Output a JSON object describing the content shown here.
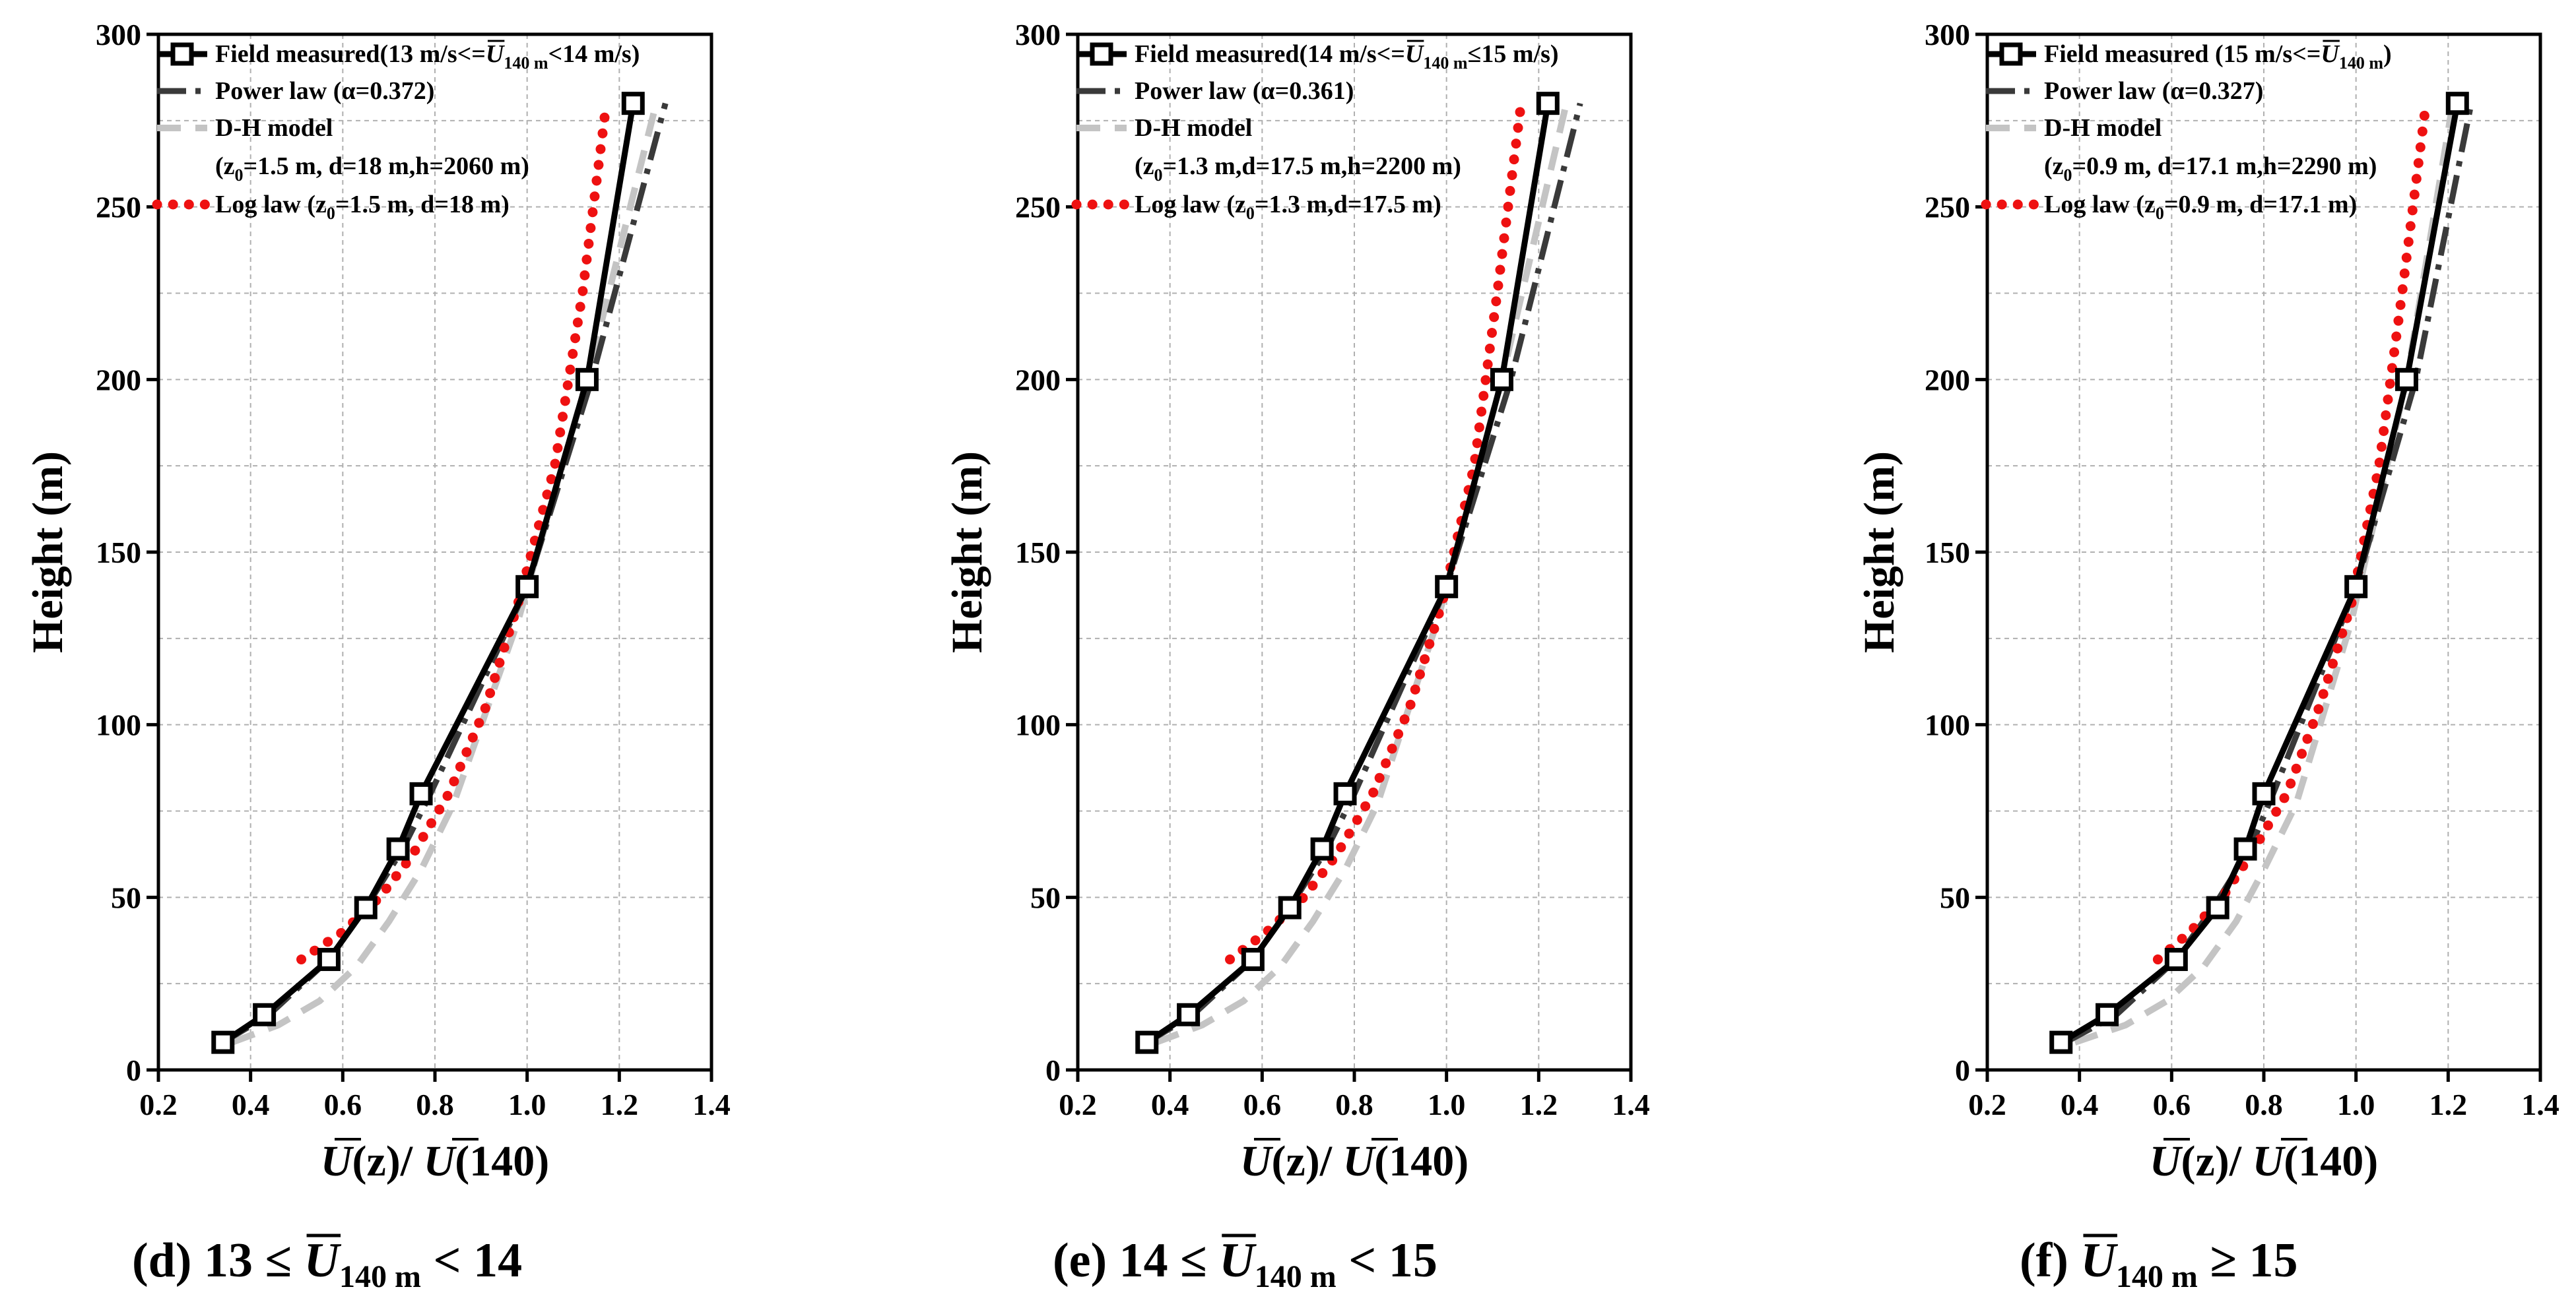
{
  "chart_data": [
    {
      "type": "line",
      "panel": "d",
      "caption": {
        "prefix": "(d) 13 ≤ ",
        "sym": "U",
        "sub": "140 m",
        "suffix": " < 14"
      },
      "xlabel": {
        "a": "U",
        "b": "(z)/ ",
        "c": "U",
        "d": "(140)"
      },
      "ylabel": "Height (m)",
      "xlim": [
        0.2,
        1.4
      ],
      "ylim": [
        0,
        300
      ],
      "xticks": [
        "0.2",
        "0.4",
        "0.6",
        "0.8",
        "1.0",
        "1.2",
        "1.4"
      ],
      "yticks": [
        "0",
        "50",
        "100",
        "150",
        "200",
        "250",
        "300"
      ],
      "legend_position": "top-left",
      "series": [
        {
          "name": "field",
          "label": {
            "pre": "Field measured(13 m/s<=",
            "sym": "U",
            "sub": "140 m",
            "post": "<14 m/s)"
          },
          "x": [
            0.34,
            0.43,
            0.57,
            0.65,
            0.72,
            0.77,
            1.0,
            1.13,
            1.23
          ],
          "y": [
            8,
            16,
            32,
            47,
            64,
            80,
            140,
            200,
            280
          ]
        },
        {
          "name": "power",
          "label": {
            "pre": "Power law (α=0.372)"
          },
          "x": [
            0.34,
            0.44,
            0.57,
            0.65,
            0.73,
            0.79,
            1.0,
            1.14,
            1.3
          ],
          "y": [
            8,
            16,
            32,
            47,
            64,
            80,
            140,
            200,
            280
          ]
        },
        {
          "name": "dh",
          "label": {
            "pre": "D-H model"
          },
          "label2": {
            "pre": "(z",
            "sub": "0",
            "post": "=1.5 m, d=18 m,h=2060 m)"
          },
          "x": [
            0.36,
            0.46,
            0.55,
            0.63,
            0.7,
            0.77,
            0.84,
            0.98,
            1.13,
            1.28
          ],
          "y": [
            8,
            13,
            20,
            30,
            43,
            58,
            77,
            130,
            200,
            280
          ]
        },
        {
          "name": "log",
          "label": {
            "pre": "Log law (z",
            "sub": "0",
            "post": "=1.5 m, d=18 m)"
          },
          "x": [
            0.51,
            0.6,
            0.68,
            0.75,
            0.83,
            0.91,
            0.98,
            1.06,
            1.12,
            1.17
          ],
          "y": [
            32,
            40,
            50,
            62,
            80,
            105,
            135,
            175,
            225,
            278
          ]
        }
      ]
    },
    {
      "type": "line",
      "panel": "e",
      "caption": {
        "prefix": "(e) 14 ≤ ",
        "sym": "U",
        "sub": "140 m",
        "suffix": " < 15"
      },
      "xlabel": {
        "a": "U",
        "b": "(z)/ ",
        "c": "U",
        "d": "(140)"
      },
      "ylabel": "Height (m)",
      "xlim": [
        0.2,
        1.4
      ],
      "ylim": [
        0,
        300
      ],
      "xticks": [
        "0.2",
        "0.4",
        "0.6",
        "0.8",
        "1.0",
        "1.2",
        "1.4"
      ],
      "yticks": [
        "0",
        "50",
        "100",
        "150",
        "200",
        "250",
        "300"
      ],
      "legend_position": "top-left",
      "series": [
        {
          "name": "field",
          "label": {
            "pre": "Field measured(14 m/s<=",
            "sym": "U",
            "sub": "140 m",
            "post": "≤15 m/s)"
          },
          "x": [
            0.35,
            0.44,
            0.58,
            0.66,
            0.73,
            0.78,
            1.0,
            1.12,
            1.22
          ],
          "y": [
            8,
            16,
            32,
            47,
            64,
            80,
            140,
            200,
            280
          ]
        },
        {
          "name": "power",
          "label": {
            "pre": "Power law (α=0.361)"
          },
          "x": [
            0.35,
            0.45,
            0.58,
            0.66,
            0.74,
            0.8,
            1.0,
            1.14,
            1.29
          ],
          "y": [
            8,
            16,
            32,
            47,
            64,
            80,
            140,
            200,
            280
          ]
        },
        {
          "name": "dh",
          "label": {
            "pre": "D-H model"
          },
          "label2": {
            "pre": "(z",
            "sub": "0",
            "post": "=1.3 m,d=17.5 m,h=2200 m)"
          },
          "x": [
            0.37,
            0.47,
            0.56,
            0.64,
            0.71,
            0.78,
            0.85,
            0.98,
            1.12,
            1.26
          ],
          "y": [
            8,
            13,
            20,
            30,
            43,
            58,
            77,
            130,
            200,
            280
          ]
        },
        {
          "name": "log",
          "label": {
            "pre": "Log law (z",
            "sub": "0",
            "post": "=1.3 m,d=17.5 m)"
          },
          "x": [
            0.53,
            0.61,
            0.69,
            0.76,
            0.84,
            0.92,
            0.99,
            1.06,
            1.11,
            1.16
          ],
          "y": [
            32,
            40,
            50,
            62,
            80,
            105,
            135,
            175,
            225,
            278
          ]
        }
      ]
    },
    {
      "type": "line",
      "panel": "f",
      "caption": {
        "prefix": "(f) ",
        "sym": "U",
        "sub": "140 m",
        "suffix": " ≥ 15"
      },
      "xlabel": {
        "a": "U",
        "b": "(z)/ ",
        "c": "U",
        "d": "(140)"
      },
      "ylabel": "Height (m)",
      "xlim": [
        0.2,
        1.4
      ],
      "ylim": [
        0,
        300
      ],
      "xticks": [
        "0.2",
        "0.4",
        "0.6",
        "0.8",
        "1.0",
        "1.2",
        "1.4"
      ],
      "yticks": [
        "0",
        "50",
        "100",
        "150",
        "200",
        "250",
        "300"
      ],
      "legend_position": "top-left",
      "series": [
        {
          "name": "field",
          "label": {
            "pre": "Field measured (15 m/s<=",
            "sym": "U",
            "sub": "140 m",
            "post": ")"
          },
          "x": [
            0.36,
            0.46,
            0.61,
            0.7,
            0.76,
            0.8,
            1.0,
            1.11,
            1.22
          ],
          "y": [
            8,
            16,
            32,
            47,
            64,
            80,
            140,
            200,
            280
          ]
        },
        {
          "name": "power",
          "label": {
            "pre": "Power law (α=0.327)"
          },
          "x": [
            0.37,
            0.48,
            0.61,
            0.69,
            0.77,
            0.82,
            1.0,
            1.13,
            1.25
          ],
          "y": [
            8,
            16,
            32,
            47,
            64,
            80,
            140,
            200,
            280
          ]
        },
        {
          "name": "dh",
          "label": {
            "pre": "D-H model"
          },
          "label2": {
            "pre": "(z",
            "sub": "0",
            "post": "=0.9 m, d=17.1 m,h=2290 m)"
          },
          "x": [
            0.39,
            0.5,
            0.59,
            0.67,
            0.74,
            0.8,
            0.87,
            0.99,
            1.11,
            1.21
          ],
          "y": [
            8,
            13,
            20,
            30,
            43,
            58,
            77,
            130,
            200,
            280
          ]
        },
        {
          "name": "log",
          "label": {
            "pre": "Log law (z",
            "sub": "0",
            "post": "=0.9 m, d=17.1 m)"
          },
          "x": [
            0.57,
            0.64,
            0.71,
            0.77,
            0.85,
            0.92,
            0.99,
            1.05,
            1.1,
            1.15
          ],
          "y": [
            32,
            40,
            50,
            62,
            80,
            105,
            135,
            175,
            225,
            278
          ]
        }
      ]
    }
  ]
}
